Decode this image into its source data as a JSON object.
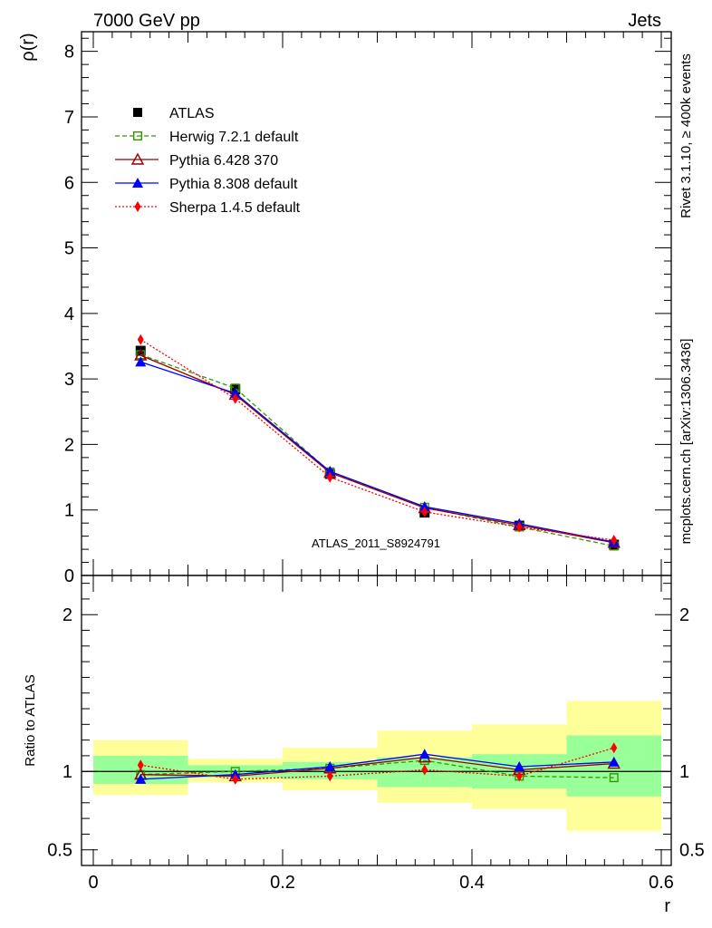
{
  "chart_data": {
    "type": "line",
    "header_left": "7000 GeV pp",
    "header_right": "Jets",
    "side_text_top": "Rivet 3.1.10, ≥ 400k events",
    "side_text_bottom": "mcplots.cern.ch [arXiv:1306.3436]",
    "watermark": "ATLAS_2011_S8924791",
    "xlabel": "r",
    "ylabel_main": "ρ(r)",
    "ylabel_ratio": "Ratio to ATLAS",
    "xlim": [
      0,
      0.6
    ],
    "ylim_main": [
      0,
      8.3
    ],
    "ylim_ratio": [
      0.4,
      2.25
    ],
    "x_ticks": [
      0,
      0.2,
      0.4,
      0.6
    ],
    "x_tick_labels": [
      "0",
      "0.2",
      "0.4",
      "0.6"
    ],
    "y_ticks_main": [
      0,
      1,
      2,
      3,
      4,
      5,
      6,
      7,
      8
    ],
    "y_tick_labels_main": [
      "0",
      "1",
      "2",
      "3",
      "4",
      "5",
      "6",
      "7",
      "8"
    ],
    "y_ticks_ratio": [
      0.5,
      1,
      2
    ],
    "y_tick_labels_ratio": [
      "0.5",
      "1",
      "2"
    ],
    "bins": [
      [
        0,
        0.1
      ],
      [
        0.1,
        0.2
      ],
      [
        0.2,
        0.3
      ],
      [
        0.3,
        0.4
      ],
      [
        0.4,
        0.5
      ],
      [
        0.5,
        0.6
      ]
    ],
    "x": [
      0.05,
      0.15,
      0.25,
      0.35,
      0.45,
      0.55
    ],
    "data": {
      "name": "ATLAS",
      "values": [
        3.43,
        2.84,
        1.55,
        0.96,
        0.76,
        0.47
      ]
    },
    "band_inner": [
      [
        0.92,
        1.1
      ],
      [
        0.96,
        1.04
      ],
      [
        0.95,
        1.06
      ],
      [
        0.9,
        1.09
      ],
      [
        0.89,
        1.11
      ],
      [
        0.84,
        1.23
      ]
    ],
    "band_outer": [
      [
        0.85,
        1.2
      ],
      [
        0.93,
        1.08
      ],
      [
        0.88,
        1.15
      ],
      [
        0.8,
        1.26
      ],
      [
        0.76,
        1.3
      ],
      [
        0.62,
        1.45
      ]
    ],
    "series": [
      {
        "name": "Herwig 7.2.1 default",
        "color": "#339900",
        "marker": "open-square",
        "dash": "5,3",
        "values": [
          3.37,
          2.86,
          1.58,
          1.04,
          0.74,
          0.45
        ],
        "ratio": [
          0.98,
          1.0,
          1.02,
          1.07,
          0.97,
          0.96
        ]
      },
      {
        "name": "Pythia 6.428 370",
        "color": "#990000",
        "marker": "open-triangle",
        "dash": "",
        "values": [
          3.36,
          2.76,
          1.57,
          1.03,
          0.77,
          0.5
        ],
        "ratio": [
          0.98,
          0.97,
          1.02,
          1.09,
          1.01,
          1.05
        ]
      },
      {
        "name": "Pythia 8.308 default",
        "color": "#0000ff",
        "marker": "filled-triangle",
        "dash": "",
        "values": [
          3.26,
          2.78,
          1.59,
          1.05,
          0.79,
          0.51
        ],
        "ratio": [
          0.95,
          0.98,
          1.03,
          1.11,
          1.03,
          1.06
        ]
      },
      {
        "name": "Sherpa 1.4.5 default",
        "color": "#ff0000",
        "marker": "diamond",
        "dash": "2,2",
        "values": [
          3.6,
          2.7,
          1.5,
          0.97,
          0.74,
          0.54
        ],
        "ratio": [
          1.04,
          0.95,
          0.97,
          1.01,
          0.97,
          1.15
        ]
      }
    ],
    "colors": {
      "band_inner": "#99ff99",
      "band_outer": "#ffff99",
      "watermark": "#a0a0a0",
      "side_text": "#808080",
      "axis": "#000000"
    }
  }
}
